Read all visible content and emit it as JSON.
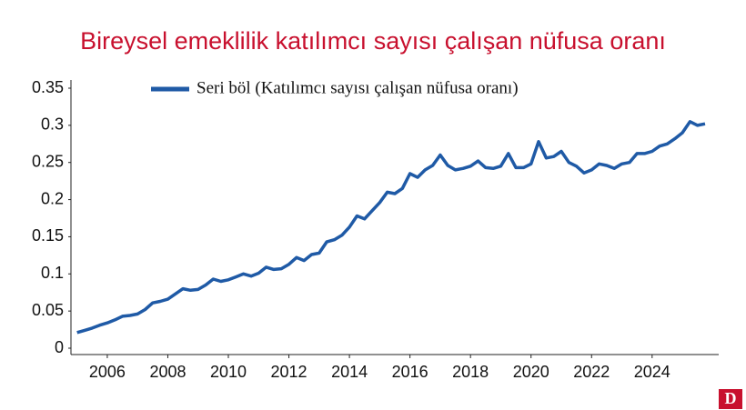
{
  "chart_data": {
    "type": "line",
    "title": "Bireysel emeklilik katılımcı sayısı çalışan nüfusa oranı",
    "x": [
      2005,
      2005.25,
      2005.5,
      2005.75,
      2006,
      2006.25,
      2006.5,
      2006.75,
      2007,
      2007.25,
      2007.5,
      2007.75,
      2008,
      2008.25,
      2008.5,
      2008.75,
      2009,
      2009.25,
      2009.5,
      2009.75,
      2010,
      2010.25,
      2010.5,
      2010.75,
      2011,
      2011.25,
      2011.5,
      2011.75,
      2012,
      2012.25,
      2012.5,
      2012.75,
      2013,
      2013.25,
      2013.5,
      2013.75,
      2014,
      2014.25,
      2014.5,
      2014.75,
      2015,
      2015.25,
      2015.5,
      2015.75,
      2016,
      2016.25,
      2016.5,
      2016.75,
      2017,
      2017.25,
      2017.5,
      2017.75,
      2018,
      2018.25,
      2018.5,
      2018.75,
      2019,
      2019.25,
      2019.5,
      2019.75,
      2020,
      2020.25,
      2020.5,
      2020.75,
      2021,
      2021.25,
      2021.5,
      2021.75,
      2022,
      2022.25,
      2022.5,
      2022.75,
      2023,
      2023.25,
      2023.5,
      2023.75,
      2024,
      2024.25,
      2024.5,
      2024.75,
      2025,
      2025.25,
      2025.5,
      2025.75
    ],
    "series": [
      {
        "name": "Seri böl (Katılımcı sayısı çalışan nüfusa oranı)",
        "color": "#1f5aa6",
        "values": [
          0.021,
          0.024,
          0.027,
          0.031,
          0.034,
          0.038,
          0.043,
          0.044,
          0.046,
          0.052,
          0.061,
          0.063,
          0.066,
          0.073,
          0.08,
          0.078,
          0.079,
          0.085,
          0.093,
          0.09,
          0.092,
          0.096,
          0.1,
          0.097,
          0.101,
          0.109,
          0.106,
          0.107,
          0.113,
          0.122,
          0.118,
          0.126,
          0.128,
          0.143,
          0.146,
          0.152,
          0.163,
          0.178,
          0.174,
          0.185,
          0.196,
          0.21,
          0.208,
          0.215,
          0.235,
          0.23,
          0.24,
          0.246,
          0.26,
          0.246,
          0.24,
          0.242,
          0.245,
          0.252,
          0.243,
          0.242,
          0.245,
          0.262,
          0.243,
          0.243,
          0.248,
          0.278,
          0.256,
          0.258,
          0.265,
          0.25,
          0.245,
          0.236,
          0.24,
          0.248,
          0.246,
          0.242,
          0.248,
          0.25,
          0.262,
          0.262,
          0.265,
          0.272,
          0.275,
          0.282,
          0.29,
          0.305,
          0.3,
          0.302
        ]
      }
    ],
    "xlim": [
      2004.8,
      2026.2
    ],
    "xticks": [
      2006,
      2008,
      2010,
      2012,
      2014,
      2016,
      2018,
      2020,
      2022,
      2024
    ],
    "ylim": [
      0,
      0.35
    ],
    "yticks": [
      0,
      0.05,
      0.1,
      0.15,
      0.2,
      0.25,
      0.3,
      0.35
    ],
    "grid": false
  },
  "logo": "D"
}
